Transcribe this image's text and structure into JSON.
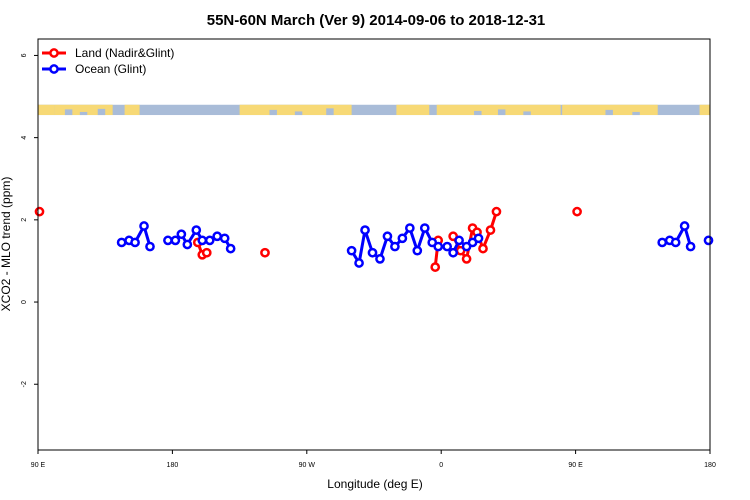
{
  "chart_data": {
    "type": "line",
    "title": "55N-60N March (Ver 9)   2014-09-06 to 2018-12-31",
    "xlabel": "Longitude (deg E)",
    "ylabel": "XCO2 - MLO trend (ppm)",
    "x_ticks": [
      {
        "value": 90,
        "label": "90 E"
      },
      {
        "value": 180,
        "label": "180"
      },
      {
        "value": 270,
        "label": "90 W"
      },
      {
        "value": 360,
        "label": "0"
      },
      {
        "value": 450,
        "label": "90 E"
      },
      {
        "value": 540,
        "label": "180"
      }
    ],
    "y_ticks": [
      {
        "value": -2,
        "label": "-2"
      },
      {
        "value": 0,
        "label": "0"
      },
      {
        "value": 2,
        "label": "2"
      },
      {
        "value": 4,
        "label": "4"
      },
      {
        "value": 6,
        "label": "6"
      }
    ],
    "xlim": [
      90,
      540
    ],
    "ylim": [
      -3.6,
      6.4
    ],
    "grid": false,
    "legend_position": "top-left",
    "map_strip": {
      "y_range": [
        4.55,
        4.8
      ],
      "ocean_color": "#a9bcd8",
      "land_color": "#f7d976"
    },
    "series": [
      {
        "name": "Land (Nadir&Glint)",
        "color": "#ff0000",
        "segments": [
          [
            [
              91,
              2.2
            ]
          ],
          [
            [
              197,
              1.45
            ],
            [
              200,
              1.15
            ],
            [
              203,
              1.2
            ]
          ],
          [
            [
              242,
              1.2
            ]
          ],
          [
            [
              356,
              0.85
            ],
            [
              358,
              1.5
            ]
          ],
          [
            [
              368,
              1.6
            ],
            [
              373,
              1.25
            ],
            [
              377,
              1.05
            ],
            [
              381,
              1.8
            ],
            [
              384,
              1.7
            ],
            [
              388,
              1.3
            ],
            [
              393,
              1.75
            ],
            [
              397,
              2.2
            ]
          ],
          [
            [
              451,
              2.2
            ]
          ]
        ]
      },
      {
        "name": "Ocean (Glint)",
        "color": "#0000ff",
        "segments": [
          [
            [
              146,
              1.45
            ],
            [
              151,
              1.5
            ],
            [
              155,
              1.45
            ],
            [
              161,
              1.85
            ],
            [
              165,
              1.35
            ]
          ],
          [
            [
              177,
              1.5
            ],
            [
              182,
              1.5
            ],
            [
              186,
              1.65
            ],
            [
              190,
              1.4
            ],
            [
              196,
              1.75
            ],
            [
              200,
              1.5
            ],
            [
              205,
              1.5
            ],
            [
              210,
              1.6
            ],
            [
              215,
              1.55
            ],
            [
              219,
              1.3
            ]
          ],
          [
            [
              300,
              1.25
            ],
            [
              305,
              0.95
            ],
            [
              309,
              1.75
            ],
            [
              314,
              1.2
            ],
            [
              319,
              1.05
            ],
            [
              324,
              1.6
            ],
            [
              329,
              1.35
            ],
            [
              334,
              1.55
            ],
            [
              339,
              1.8
            ],
            [
              344,
              1.25
            ],
            [
              349,
              1.8
            ],
            [
              354,
              1.45
            ],
            [
              358,
              1.35
            ],
            [
              364,
              1.35
            ],
            [
              368,
              1.2
            ],
            [
              372,
              1.5
            ],
            [
              377,
              1.35
            ],
            [
              381,
              1.45
            ],
            [
              385,
              1.55
            ]
          ],
          [
            [
              508,
              1.45
            ],
            [
              513,
              1.5
            ],
            [
              517,
              1.45
            ],
            [
              523,
              1.85
            ],
            [
              527,
              1.35
            ]
          ],
          [
            [
              539,
              1.5
            ]
          ]
        ]
      }
    ]
  }
}
